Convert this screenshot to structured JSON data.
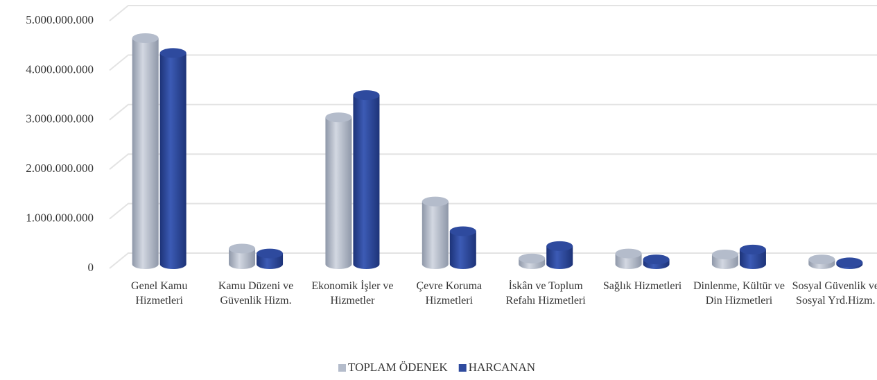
{
  "chart_data": {
    "type": "bar",
    "categories": [
      "Genel Kamu Hizmetleri",
      "Kamu Düzeni ve Güvenlik Hizm.",
      "Ekonomik İşler ve Hizmetler",
      "Çevre Koruma Hizmetleri",
      "İskân ve Toplum Refahı Hizmetleri",
      "Sağlık Hizmetleri",
      "Dinlenme, Kültür ve Din Hizmetleri",
      "Sosyal Güvenlik ve Sosyal Yrd.Hizm."
    ],
    "series": [
      {
        "name": "TOPLAM ÖDENEK",
        "color": "#b4bccb",
        "values": [
          4650000000,
          400000000,
          3050000000,
          1350000000,
          200000000,
          300000000,
          280000000,
          180000000
        ]
      },
      {
        "name": "HARCANAN",
        "color": "#2e4a9e",
        "values": [
          4350000000,
          300000000,
          3500000000,
          750000000,
          450000000,
          180000000,
          380000000,
          120000000
        ]
      }
    ],
    "ylim": [
      0,
      5000000000
    ],
    "yticks": [
      0,
      {
        "value": 1000000000,
        "label": "1.000.000.000"
      },
      {
        "value": 2000000000,
        "label": "2.000.000.000"
      },
      {
        "value": 3000000000,
        "label": "3.000.000.000"
      },
      {
        "value": 4000000000,
        "label": "4.000.000.000"
      },
      {
        "value": 5000000000,
        "label": "5.000.000.000"
      }
    ],
    "grid": true,
    "legend": "bottom"
  }
}
